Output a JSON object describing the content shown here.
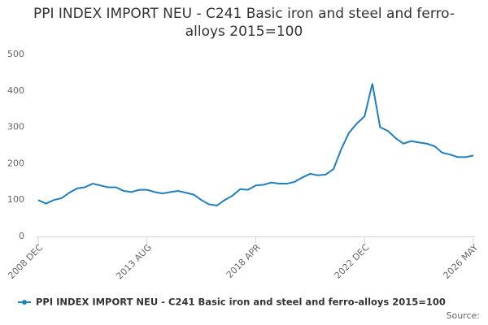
{
  "chart_data": {
    "type": "line",
    "title": "PPI INDEX IMPORT NEU - C241 Basic iron and steel and ferro-alloys 2015=100",
    "source": "Source:",
    "categories": [
      "2008 DEC",
      null,
      null,
      null,
      null,
      null,
      null,
      null,
      null,
      null,
      null,
      null,
      null,
      null,
      "2013 AUG",
      null,
      null,
      null,
      null,
      null,
      null,
      null,
      null,
      null,
      null,
      null,
      null,
      null,
      "2018 APR",
      null,
      null,
      null,
      null,
      null,
      null,
      null,
      null,
      null,
      null,
      null,
      null,
      null,
      "2022 DEC",
      null,
      null,
      null,
      null,
      null,
      null,
      null,
      null,
      null,
      null,
      null,
      null,
      null,
      "2026 MAY"
    ],
    "series": [
      {
        "name": "PPI INDEX IMPORT NEU - C241 Basic iron and steel and ferro-alloys 2015=100",
        "color": "#1f7fc0",
        "values": [
          100,
          90,
          100,
          105,
          120,
          132,
          135,
          145,
          140,
          135,
          135,
          125,
          122,
          128,
          128,
          122,
          118,
          122,
          125,
          120,
          115,
          100,
          88,
          85,
          100,
          112,
          130,
          128,
          140,
          142,
          148,
          145,
          145,
          150,
          162,
          172,
          168,
          170,
          185,
          240,
          285,
          310,
          330,
          420,
          300,
          290,
          270,
          255,
          262,
          258,
          255,
          248,
          230,
          225,
          218,
          218,
          222
        ]
      }
    ],
    "ylim": [
      0,
      500
    ],
    "yticks": [
      0,
      100,
      200,
      300,
      400,
      500
    ],
    "grid": false
  }
}
